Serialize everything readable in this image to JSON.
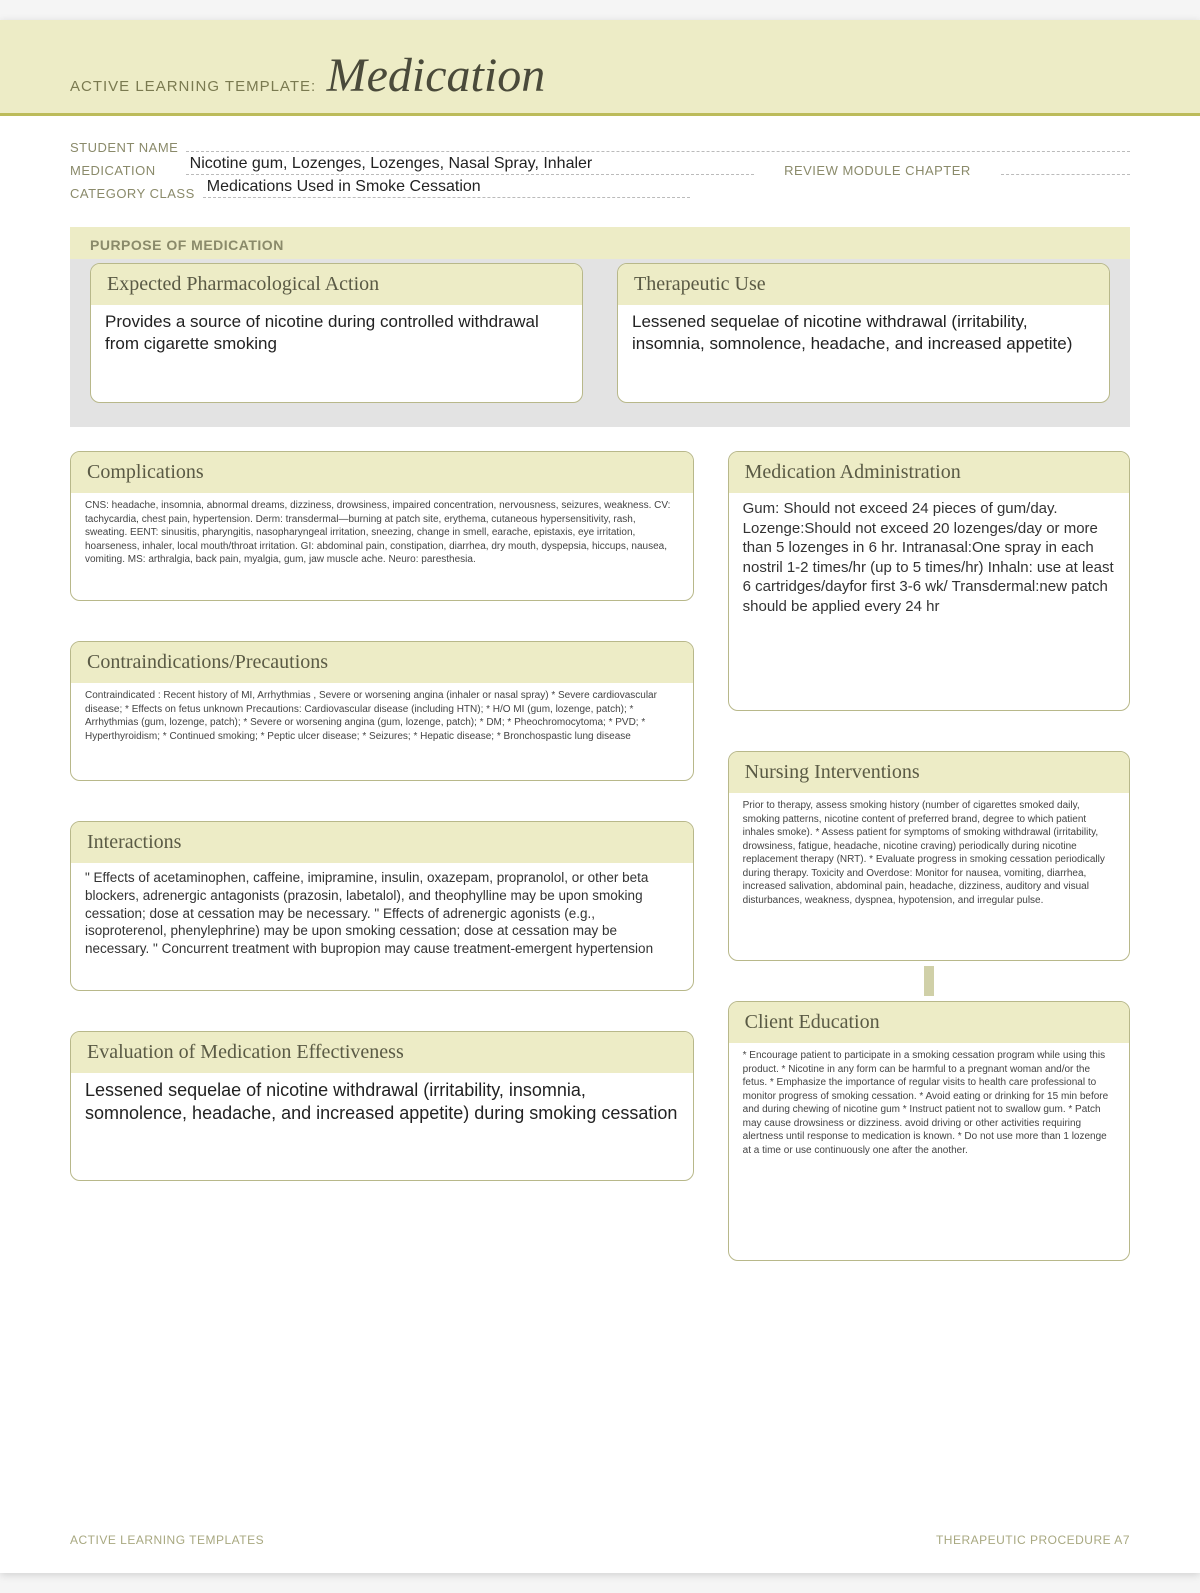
{
  "header": {
    "pre": "ACTIVE LEARNING TEMPLATE:",
    "title": "Medication"
  },
  "meta": {
    "student_name_label": "STUDENT NAME",
    "medication_label": "MEDICATION",
    "medication_value": "Nicotine gum, Lozenges, Lozenges, Nasal Spray, Inhaler",
    "review_label": "REVIEW MODULE CHAPTER",
    "category_label": "CATEGORY CLASS",
    "category_value": "Medications Used in Smoke Cessation"
  },
  "purpose_label": "PURPOSE OF MEDICATION",
  "cards": {
    "expected": {
      "title": "Expected Pharmacological Action",
      "body": "Provides a source of nicotine during controlled withdrawal from cigarette smoking"
    },
    "therapeutic": {
      "title": "Therapeutic Use",
      "body": "Lessened sequelae of nicotine withdrawal (irritability, insomnia, somnolence, headache, and increased  appetite)"
    },
    "complications": {
      "title": "Complications",
      "body": "CNS: headache, insomnia, abnormal dreams, dizziness, drowsiness, impaired concentration, nervousness, seizures, weakness. CV: tachycardia,  chest pain, hypertension. Derm: transdermal—burning  at patch site, erythema, cutaneous hypersensitivity, rash, sweating. EENT: sinusitis,  pharyngitis, nasopharyngeal irritation, sneezing, change in smell, earache, epistaxis, eye irritation, hoarseness, inhaler, local mouth/throat irritation. GI: abdominal pain, constipation, diarrhea, dry mouth, dyspepsia,  hiccups,  nausea, vomiting. MS: arthralgia, back  pain, myalgia, gum, jaw muscle ache. Neuro: paresthesia."
    },
    "contra": {
      "title": "Contraindications/Precautions",
      "body": "Contraindicated  : Recent history of MI, Arrhythmias , Severe or worsening angina (inhaler or nasal spray)  *  Severe cardiovascular  disease;  *  Effects on fetus unknown Precautions: Cardiovascular disease (including  HTN);  *  H/O MI (gum, lozenge, patch);  *  Arrhythmias (gum, lozenge, patch);  *  Severe or worsening angina (gum, lozenge, patch);  *  DM;  *  Pheochromocytoma;  *  PVD;  *  Hyperthyroidism;  *  Continued smoking;  *  Peptic ulcer disease;  *  Seizures;  *  Hepatic disease;  *  Bronchospastic lung disease"
    },
    "interactions": {
      "title": "Interactions",
      "body": " \"  Effects of acetaminophen, caffeine, imipramine, insulin, oxazepam, propranolol, or other beta blockers, adrenergic  antagonists (prazosin, labetalol), and theophylline may be  upon smoking cessation; dose  at cessation may be necessary.  \"  Effects of adrenergic  agonists (e.g., isoproterenol, phenylephrine) may be  upon smoking cessation; dose  at cessation may be necessary.  \"  Concurrent treatment with bupropion  may cause treatment-emergent hypertension"
    },
    "evaluation": {
      "title": "Evaluation of Medication Effectiveness",
      "body": "Lessened sequelae of nicotine withdrawal (irritability, insomnia, somnolence, headache, and increased appetite) during smoking cessation"
    },
    "medadmin": {
      "title": "Medication Administration",
      "body": "Gum: Should not exceed 24 pieces of gum/day. Lozenge:Should not exceed 20 lozenges/day or more than 5 lozenges in 6 hr. Intranasal:One spray in each nostril 1-2 times/hr (up to 5 times/hr) Inhaln: use at least 6 cartridges/dayfor  first 3-6 wk/ Transdermal:new patch should be applied every 24 hr"
    },
    "nursing": {
      "title": "Nursing Interventions",
      "body": " Prior to therapy, assess smoking history (number of cigarettes smoked daily, smoking patterns, nicotine content of preferred brand, degree  to which patient inhales smoke).  *  Assess patient for symptoms of smoking withdrawal (irritability, drowsiness, fatigue, headache,  nicotine craving) periodically during  nicotine replacement therapy (NRT).  *  Evaluate progress in smoking cessation periodically  during therapy.  Toxicity and Overdose: Monitor for nausea, vomiting, diarrhea, increased  salivation, abdominal pain, headache,  dizziness, auditory and visual disturbances, weakness, dyspnea, hypotension, and irregular pulse."
    },
    "clientedu": {
      "title": "Client Education",
      "body": " *  Encourage patient to participate  in a smoking cessation program while using this product.  *  Nicotine in any form can be harmful to a pregnant woman and/or the fetus.  *  Emphasize the importance  of regular visits to health care professional to monitor progress of smoking cessation.  *  Avoid eating or drinking for 15 min before and during chewing of nicotine gum  *  Instruct patient not to swallow gum.  *  Patch may cause drowsiness or dizziness.  avoid driving or other activities requiring alertness until response to medication is known.  *  Do not use more than 1 lozenge at a time or use continuously one after the another."
    }
  },
  "footer": {
    "left": "ACTIVE LEARNING TEMPLATES",
    "right": "THERAPEUTIC PROCEDURE   A7"
  },
  "colors": {
    "band_bg": "#edecc6",
    "band_rule": "#bcbb5a",
    "card_border": "#b8b88a",
    "purpose_shade": "#e3e3e3",
    "label_text": "#8a8a6a",
    "title_text": "#4a4a3a"
  }
}
